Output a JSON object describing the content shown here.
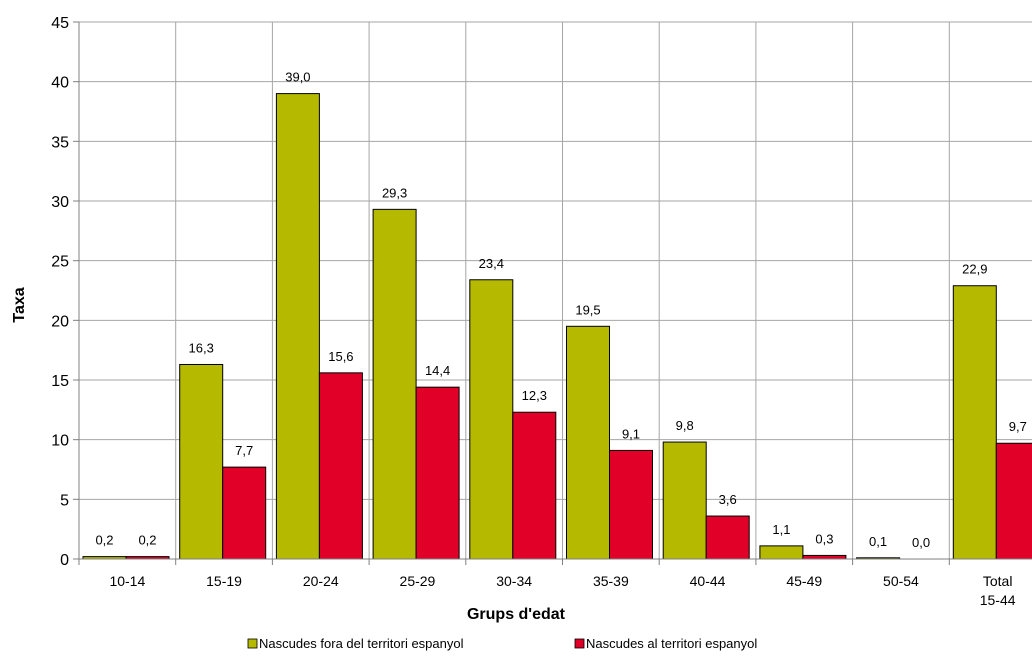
{
  "chart_data": {
    "type": "bar",
    "xlabel": "Grups d'edat",
    "ylabel": "Taxa",
    "ylim": [
      0,
      45
    ],
    "ytick_step": 5,
    "grid": true,
    "legend_position": "bottom",
    "categories": [
      "10-14",
      "15-19",
      "20-24",
      "25-29",
      "30-34",
      "35-39",
      "40-44",
      "45-49",
      "50-54",
      "Total 15-44"
    ],
    "series": [
      {
        "name": "Nascudes fora del territori espanyol",
        "color": "#b5ba00",
        "values": [
          0.2,
          16.3,
          39.0,
          29.3,
          23.4,
          19.5,
          9.8,
          1.1,
          0.1,
          22.9
        ],
        "labels": [
          "0,2",
          "16,3",
          "39,0",
          "29,3",
          "23,4",
          "19,5",
          "9,8",
          "1,1",
          "0,1",
          "22,9"
        ]
      },
      {
        "name": "Nascudes al territori espanyol",
        "color": "#e00028",
        "values": [
          0.2,
          7.7,
          15.6,
          14.4,
          12.3,
          9.1,
          3.6,
          0.3,
          0.0,
          9.7
        ],
        "labels": [
          "0,2",
          "7,7",
          "15,6",
          "14,4",
          "12,3",
          "9,1",
          "3,6",
          "0,3",
          "0,0",
          "9,7"
        ]
      }
    ]
  }
}
